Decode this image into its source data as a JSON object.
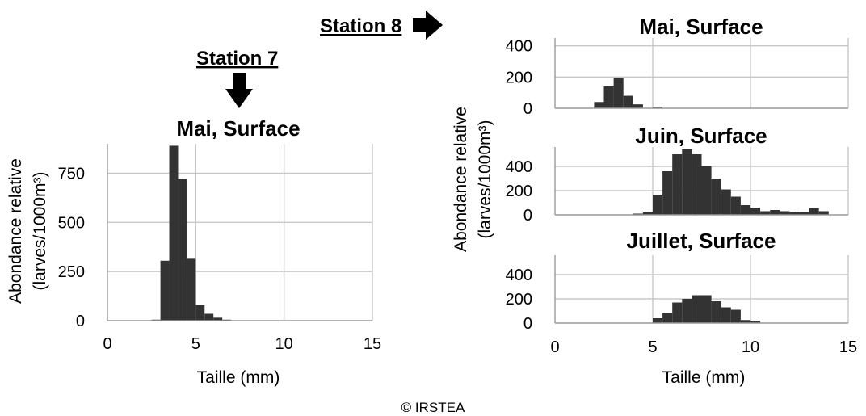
{
  "header": {
    "station8": "Station 8",
    "station7": "Station 7"
  },
  "credit": "© IRSTEA",
  "colors": {
    "bar": "#333333",
    "grid": "#c8c8c8",
    "axis": "#9a9a9a"
  },
  "arrows": {
    "station8": "arrow-right-icon",
    "station7": "arrow-down-icon"
  },
  "chart_data": [
    {
      "type": "bar",
      "station": "Station 7",
      "title": "Mai, Surface",
      "xlabel": "Taille (mm)",
      "ylabel": "Abondance relative",
      "ylabel2": "(larves/1000m³)",
      "xlim": [
        0,
        15
      ],
      "ylim": [
        0,
        900
      ],
      "xticks": [
        0,
        5,
        10,
        15
      ],
      "yticks": [
        0,
        250,
        500,
        750
      ],
      "grid": true,
      "bin_width": 0.5,
      "x": [
        2.5,
        3.0,
        3.5,
        4.0,
        4.5,
        5.0,
        5.5,
        6.0,
        6.5
      ],
      "values": [
        5,
        305,
        890,
        720,
        315,
        80,
        35,
        15,
        5
      ]
    },
    {
      "type": "bar",
      "station": "Station 8",
      "title": "Mai, Surface",
      "xlabel": "",
      "ylabel": "",
      "xlim": [
        0,
        15
      ],
      "ylim": [
        0,
        450
      ],
      "xticks": [],
      "yticks": [
        0,
        200,
        400
      ],
      "grid": true,
      "bin_width": 0.5,
      "x": [
        2.0,
        2.5,
        3.0,
        3.5,
        4.0,
        5.0
      ],
      "values": [
        40,
        140,
        195,
        80,
        25,
        8
      ]
    },
    {
      "type": "bar",
      "station": "Station 8",
      "title": "Juin, Surface",
      "xlabel": "",
      "ylabel": "Abondance relative",
      "ylabel2": "(larves/1000m³)",
      "xlim": [
        0,
        15
      ],
      "ylim": [
        0,
        560
      ],
      "xticks": [],
      "yticks": [
        0,
        200,
        400
      ],
      "grid": true,
      "bin_width": 0.5,
      "x": [
        4.0,
        4.5,
        5.0,
        5.5,
        6.0,
        6.5,
        7.0,
        7.5,
        8.0,
        8.5,
        9.0,
        9.5,
        10.0,
        10.5,
        11.0,
        11.5,
        12.0,
        12.5,
        13.0,
        13.5
      ],
      "values": [
        10,
        20,
        160,
        360,
        500,
        540,
        500,
        400,
        300,
        210,
        150,
        80,
        60,
        30,
        40,
        30,
        25,
        20,
        55,
        30
      ]
    },
    {
      "type": "bar",
      "station": "Station 8",
      "title": "Juillet, Surface",
      "xlabel": "Taille (mm)",
      "ylabel": "",
      "xlim": [
        0,
        15
      ],
      "ylim": [
        0,
        560
      ],
      "xticks": [
        0,
        5,
        10,
        15
      ],
      "yticks": [
        0,
        200,
        400
      ],
      "grid": true,
      "bin_width": 0.5,
      "x": [
        5.0,
        5.5,
        6.0,
        6.5,
        7.0,
        7.5,
        8.0,
        8.5,
        9.0,
        9.5,
        10.0
      ],
      "values": [
        40,
        80,
        170,
        200,
        230,
        230,
        180,
        130,
        110,
        25,
        20
      ]
    }
  ]
}
